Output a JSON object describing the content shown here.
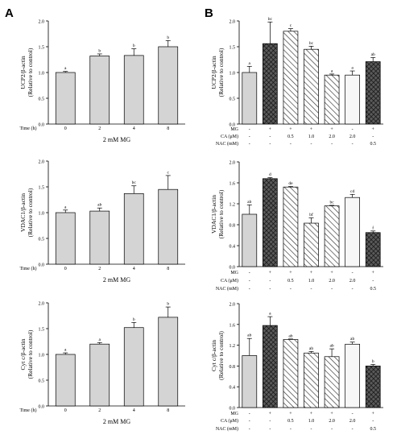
{
  "panel_letters": {
    "A": "A",
    "B": "B"
  },
  "chart_data": [
    {
      "id": "A1",
      "type": "bar",
      "panel": "A",
      "ylabel": [
        "UCP2/β-actin",
        "(Relative to control)"
      ],
      "ylim": [
        0,
        2.0
      ],
      "yticks": [
        0,
        0.5,
        1.0,
        1.5,
        2.0
      ],
      "row_labels": [
        "Time (h)"
      ],
      "rows": [
        [
          "0",
          "2",
          "4",
          "8"
        ]
      ],
      "xlabel": "2 mM MG",
      "values": [
        1.0,
        1.32,
        1.33,
        1.5
      ],
      "errors": [
        0.02,
        0.04,
        0.13,
        0.12
      ],
      "letters": [
        "a",
        "b",
        "b",
        "b"
      ]
    },
    {
      "id": "A2",
      "type": "bar",
      "panel": "A",
      "ylabel": [
        "VDAC1/β-actin",
        "(Relative to control)"
      ],
      "ylim": [
        0,
        2.0
      ],
      "yticks": [
        0,
        0.5,
        1.0,
        1.5,
        2.0
      ],
      "row_labels": [
        "Time (h)"
      ],
      "rows": [
        [
          "0",
          "2",
          "4",
          "8"
        ]
      ],
      "xlabel": "2 mM MG",
      "values": [
        1.0,
        1.03,
        1.37,
        1.45
      ],
      "errors": [
        0.05,
        0.06,
        0.15,
        0.27
      ],
      "letters": [
        "a",
        "ab",
        "bc",
        "c"
      ]
    },
    {
      "id": "A3",
      "type": "bar",
      "panel": "A",
      "ylabel": [
        "Cyt c/β-actin",
        "(Relative to control)"
      ],
      "ylim": [
        0,
        2.0
      ],
      "yticks": [
        0,
        0.5,
        1.0,
        1.5,
        2.0
      ],
      "row_labels": [
        "Time (h)"
      ],
      "rows": [
        [
          "0",
          "2",
          "4",
          "8"
        ]
      ],
      "xlabel": "2 mM MG",
      "values": [
        1.0,
        1.2,
        1.52,
        1.72
      ],
      "errors": [
        0.03,
        0.03,
        0.1,
        0.2
      ],
      "letters": [
        "a",
        "a",
        "b",
        "b"
      ]
    },
    {
      "id": "B1",
      "type": "bar",
      "panel": "B",
      "ylabel": [
        "UCP2/β-actin",
        "(Relative to control)"
      ],
      "ylim": [
        0,
        2.0
      ],
      "yticks": [
        0,
        0.5,
        1.0,
        1.5,
        2.0
      ],
      "row_labels": [
        "MG",
        "CA (μM)",
        "NAC (mM)"
      ],
      "rows": [
        [
          "-",
          "+",
          "+",
          "+",
          "+",
          "-",
          "+"
        ],
        [
          "-",
          "-",
          "0.5",
          "1.0",
          "2.0",
          "2.0",
          "-"
        ],
        [
          "-",
          "-",
          "-",
          "-",
          "-",
          "-",
          "0.5"
        ]
      ],
      "values": [
        1.0,
        1.56,
        1.8,
        1.45,
        0.95,
        0.95,
        1.21
      ],
      "errors": [
        0.12,
        0.42,
        0.05,
        0.06,
        0.02,
        0.08,
        0.08
      ],
      "letters": [
        "a",
        "bc",
        "c",
        "bc",
        "a",
        "a",
        "ab"
      ],
      "fills": [
        "light",
        "cross",
        "diag",
        "diag",
        "diag",
        "white",
        "cross"
      ]
    },
    {
      "id": "B2",
      "type": "bar",
      "panel": "B",
      "ylabel": [
        "VDAC1/β-actin",
        "(Relative to control)"
      ],
      "ylim": [
        0,
        2.0
      ],
      "yticks": [
        0,
        0.4,
        0.8,
        1.2,
        1.6,
        2.0
      ],
      "row_labels": [
        "MG",
        "CA (μM)",
        "NAC (mM)"
      ],
      "rows": [
        [
          "-",
          "+",
          "+",
          "+",
          "+",
          "-",
          "+"
        ],
        [
          "-",
          "-",
          "0.5",
          "1.0",
          "2.0",
          "2.0",
          "-"
        ],
        [
          "-",
          "-",
          "-",
          "-",
          "-",
          "-",
          "0.5"
        ]
      ],
      "values": [
        1.0,
        1.68,
        1.52,
        0.83,
        1.16,
        1.32,
        0.65
      ],
      "errors": [
        0.18,
        0.02,
        0.01,
        0.1,
        0.01,
        0.06,
        0.03
      ],
      "letters": [
        "ab",
        "d",
        "de",
        "bf",
        "bc",
        "cd",
        "f"
      ],
      "fills": [
        "light",
        "cross",
        "diag",
        "diag",
        "diag",
        "white",
        "cross"
      ]
    },
    {
      "id": "B3",
      "type": "bar",
      "panel": "B",
      "ylabel": [
        "Cyt c/β-actin",
        "(Relative to control)"
      ],
      "ylim": [
        0,
        2.0
      ],
      "yticks": [
        0,
        0.4,
        0.8,
        1.2,
        1.6,
        2.0
      ],
      "row_labels": [
        "MG",
        "CA (μM)",
        "NAC (mM)"
      ],
      "rows": [
        [
          "-",
          "+",
          "+",
          "+",
          "+",
          "-",
          "+"
        ],
        [
          "-",
          "-",
          "0.5",
          "1.0",
          "2.0",
          "2.0",
          "-"
        ],
        [
          "-",
          "-",
          "-",
          "-",
          "-",
          "-",
          "0.5"
        ]
      ],
      "values": [
        1.0,
        1.58,
        1.31,
        1.05,
        0.98,
        1.22,
        0.8
      ],
      "errors": [
        0.33,
        0.17,
        0.01,
        0.03,
        0.15,
        0.04,
        0.03
      ],
      "letters": [
        "ab",
        "a",
        "ab",
        "ab",
        "ab",
        "ab",
        "b"
      ],
      "fills": [
        "light",
        "cross",
        "diag",
        "diag",
        "diag",
        "white",
        "cross"
      ]
    }
  ]
}
